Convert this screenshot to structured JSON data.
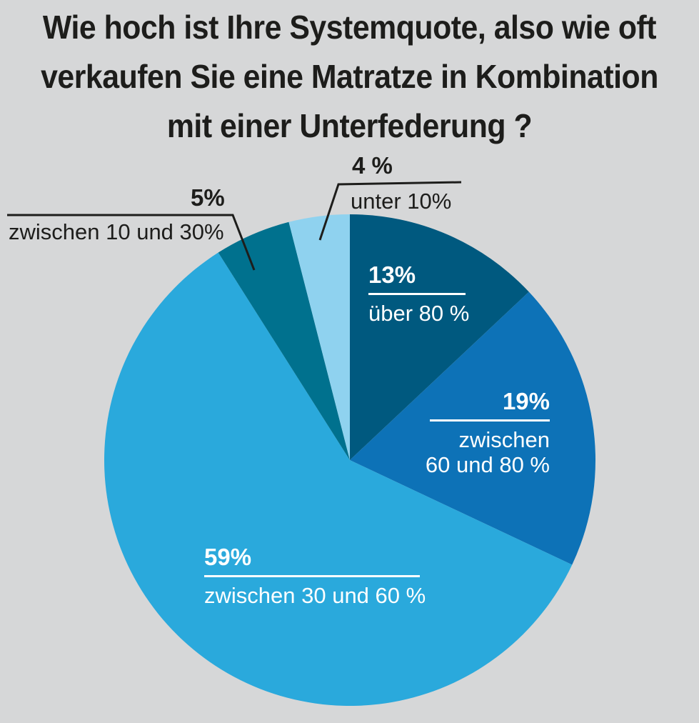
{
  "title": {
    "line1": "Wie hoch ist Ihre Systemquote, also wie oft",
    "line2": "verkaufen Sie eine Matratze in Kombination",
    "line3": "mit einer Unterfederung ?"
  },
  "labels": {
    "s13": {
      "pct": "13%",
      "desc": "über 80 %"
    },
    "s19": {
      "pct": "19%",
      "desc_line1": "zwischen",
      "desc_line2": "60 und 80 %"
    },
    "s59": {
      "pct": "59%",
      "desc": "zwischen 30 und 60 %"
    },
    "s5": {
      "pct": "5%",
      "desc": "zwischen 10 und 30%"
    },
    "s4": {
      "pct": "4 %",
      "desc": "unter 10%"
    }
  },
  "colors": {
    "background": "#d6d7d8",
    "text_black": "#1d1d1b",
    "text_white": "#ffffff",
    "callout_line": "#1d1d1b"
  },
  "chart_data": {
    "type": "pie",
    "title": "Wie hoch ist Ihre Systemquote, also wie oft verkaufen Sie eine Matratze in Kombination mit einer Unterfederung ?",
    "unit": "%",
    "start_angle_deg": 0,
    "direction": "clockwise",
    "legend_position": "callouts-and-inside-slices",
    "slices": [
      {
        "name": "slice-ueber-80",
        "label": "über 80 %",
        "value": 13,
        "color": "#00597f",
        "label_color": "#ffffff"
      },
      {
        "name": "slice-zwischen-60-80",
        "label": "zwischen 60 und 80 %",
        "value": 19,
        "color": "#0d72b7",
        "label_color": "#ffffff"
      },
      {
        "name": "slice-zwischen-30-60",
        "label": "zwischen 30 und 60 %",
        "value": 59,
        "color": "#2aa9dc",
        "label_color": "#ffffff"
      },
      {
        "name": "slice-zwischen-10-30",
        "label": "zwischen 10 und 30%",
        "value": 5,
        "color": "#00718e",
        "label_color": "#1d1d1b"
      },
      {
        "name": "slice-unter-10",
        "label": "unter 10%",
        "value": 4,
        "color": "#8fd2ef",
        "label_color": "#1d1d1b"
      }
    ]
  }
}
